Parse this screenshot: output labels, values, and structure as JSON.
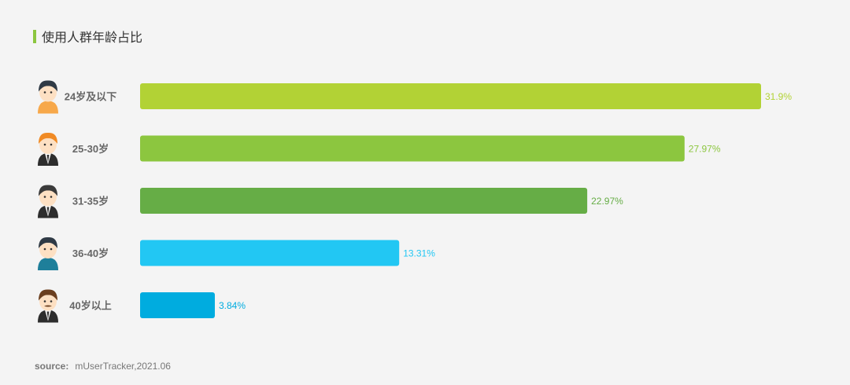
{
  "title": "使用人群年龄占比",
  "source": {
    "label": "source:",
    "text": "mUserTracker,2021.06"
  },
  "chart_data": {
    "type": "bar",
    "orientation": "horizontal",
    "categories": [
      "24岁及以下",
      "25-30岁",
      "31-35岁",
      "36-40岁",
      "40岁以上"
    ],
    "values": [
      31.9,
      27.97,
      22.97,
      13.31,
      3.84
    ],
    "value_labels": [
      "31.9%",
      "27.97%",
      "22.97%",
      "13.31%",
      "3.84%"
    ],
    "colors": [
      "#b2d235",
      "#8cc63f",
      "#66ad46",
      "#22c7f3",
      "#00acdf"
    ],
    "icons": [
      "boy-avatar-icon",
      "ginger-man-avatar-icon",
      "suit-man-avatar-icon",
      "young-man-avatar-icon",
      "mustache-man-avatar-icon"
    ],
    "xlim": [
      0,
      31.9
    ],
    "grid": false,
    "legend": "none"
  }
}
